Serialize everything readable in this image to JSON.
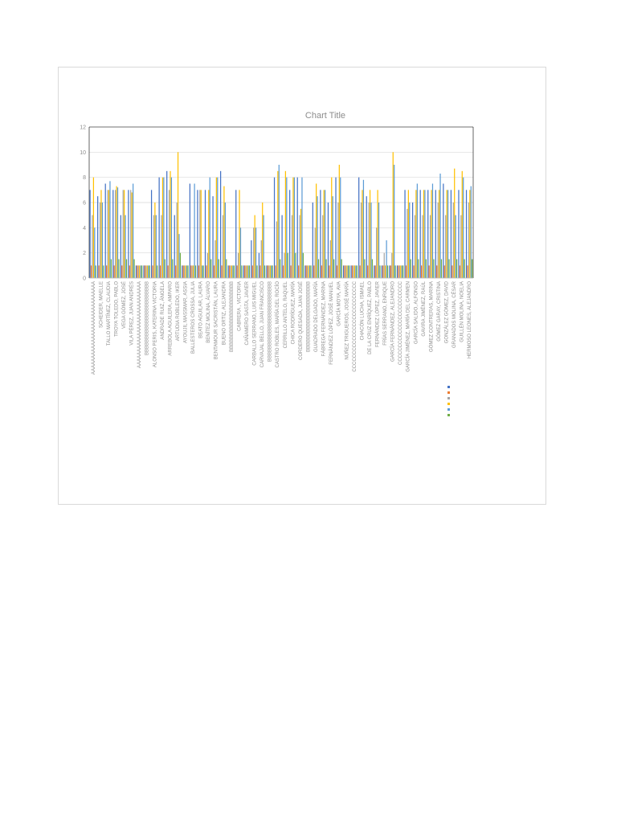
{
  "chart_data": {
    "type": "bar",
    "title": "Chart Title",
    "xlabel": "",
    "ylabel": "",
    "ylim": [
      0,
      12
    ],
    "yticks": [
      0,
      2,
      4,
      6,
      8,
      10,
      12
    ],
    "grid": true,
    "legend_position": "right",
    "colors": [
      "#4472c4",
      "#ed7d31",
      "#a5a5a5",
      "#ffc000",
      "#5b9bd5",
      "#70ad47"
    ],
    "categories": [
      "AAAAAAAAAAAAAAAAAAAAAAAAAAAAA",
      "SCHEIDER, MAELLE",
      "TALLO MARTÍNEZ, CLAUDIA",
      "TROYA TOLEDO, PABLO",
      "VEGA GÓMEZ, JOSÉ",
      "VILA PÉREZ, JUAN ANDRÉS",
      "AAAAAAAAAAAAAAAAAAAAAAAAAAA",
      "BBBBBBBBBBBBBBBBBBBBBBB",
      "ALONSO PERIS, KATERINA VICTORIA",
      "ANDRADE RUIZ, ÁNGELA",
      "ARREBOLA AGUILERA, AMPARO",
      "ARTUDIA ROBLEDO, IKER",
      "AYOUJIL MASSMAR, ASSIA",
      "BALLESTEROS CROSSA, JULIA",
      "BEATO AGUILAR, LAURA",
      "BENÍTEZ MOLINA, ÁLVARO",
      "BENTAMOUR SACRISTÁN, LAURA",
      "BUENO ORTIZ, ALEJANDRA",
      "BBBBBBBBBBBBBBBBBBBBBB",
      "CABRERA , VICTORIA",
      "CAÑAMERO SASTA, JAVIER",
      "CARBALLO SERRANO, LUIS MIGUEL",
      "CARVAJAL BELLO, JUAN FRANCISCO",
      "BBBBBBBBBBBBBBBBBBBBBBBBB",
      "CASTRO ROBLES, MARÍA DEL ROCÍO",
      "CERRILLO ANTELO, RAQUEL",
      "CHICA RODRÍGUEZ, MARÍA",
      "CORDERO QUESADA, JUAN JOSÉ",
      "BBBBBBBBBBBBBBBBBBBBBB",
      "GUADRADO DELGADO, MARÍA",
      "FÁBREGA FERNÁNDEZ, MARINA",
      "FERNÁNDEZ LÓPEZ, JOSÉ MANUEL",
      "GARCÍA MOYA, AVA",
      "NÚÑEZ TRIGUEROS, JOSÉ MARÍA",
      "CCCCCCCCCCCCCCCCCCCCCCCCCC",
      "CHACÓN LUCHA, ISMAEL",
      "DE LA CRUZ ENRÍQUEZ, PABLO",
      "FERNÁNDEZ LÓPEZ, JAVIER",
      "FRÍAS SERRANO, ENRIQUE",
      "GARCÍA FERNÁNDEZ, ALEJANDRO",
      "CCCCCCCCCCCCCCCCCCCCCCCC",
      "GARCÍA JIMÉNEZ, MARÍA DEL CARMEN",
      "GARCÍA SALIDO, ALFONSO",
      "GAVIRA JIMÉNEZ, RAÚL",
      "GÓMEZ CONTRERAS, MARINA",
      "GÓMEZ GARAY, CRISTINA",
      "GONZÁLEZ GÓMEZ, DAVID",
      "GRANADOS MOLINA, CÉSAR",
      "GUILLÉN MOLINA, NOELIA",
      "HERMOSO LEONES, ALEJANDRO"
    ],
    "series": [
      {
        "values": [
          7,
          6.5,
          7.5,
          7,
          5,
          7,
          1,
          1,
          7,
          8,
          8.5,
          5,
          1,
          7.5,
          7,
          7,
          6.5,
          8.5,
          1,
          7,
          1,
          3,
          2,
          1,
          8,
          5,
          7,
          8,
          1,
          6,
          7,
          6,
          8,
          1,
          1,
          8,
          6.5,
          1,
          1,
          1,
          1,
          7,
          6,
          7,
          7,
          7,
          7.5,
          7,
          7,
          7
        ]
      },
      {
        "values": [
          1,
          1,
          1,
          1,
          1,
          1,
          1,
          1,
          1,
          1,
          1,
          1,
          1,
          1,
          1,
          1,
          1,
          1,
          1,
          1,
          1,
          1,
          1,
          1,
          1,
          1,
          1,
          1,
          1,
          1,
          1,
          1,
          1,
          1,
          1,
          1,
          1,
          1,
          1,
          1,
          1,
          1,
          1,
          1,
          1,
          1,
          1,
          1,
          1,
          1
        ]
      },
      {
        "values": [
          5,
          6,
          7,
          7,
          7,
          7,
          1,
          1,
          5,
          5,
          7,
          6,
          1,
          1,
          7,
          2,
          3,
          5,
          1,
          2,
          1,
          4,
          3,
          1,
          4.5,
          2,
          5,
          5,
          1,
          4,
          5,
          3,
          6,
          1,
          1,
          6,
          6,
          4,
          2,
          2,
          1,
          5.5,
          5,
          5,
          5,
          6,
          5,
          6,
          5,
          6
        ]
      },
      {
        "values": [
          8,
          7,
          7,
          7.3,
          7,
          6.8,
          1,
          1,
          6,
          8,
          8.5,
          10,
          1,
          1,
          7,
          7,
          8,
          7.3,
          1,
          7,
          1,
          5,
          6,
          1,
          8.5,
          8.5,
          8,
          5.5,
          1,
          7.5,
          7,
          8,
          9,
          1,
          1,
          7,
          7,
          7,
          1,
          10,
          1,
          7,
          7,
          7,
          7,
          7,
          7,
          8.7,
          8.5,
          7
        ]
      },
      {
        "values": [
          4,
          6,
          7.7,
          7.2,
          5,
          7.5,
          1,
          1,
          5,
          8,
          8,
          3.5,
          1,
          7.5,
          1,
          8,
          8,
          6,
          1,
          4,
          1,
          4,
          5,
          1,
          9,
          8,
          8,
          8,
          1,
          6.5,
          7,
          6.5,
          8,
          1,
          1,
          7.8,
          6,
          6,
          3,
          9,
          1,
          6,
          7.5,
          7,
          7.5,
          8.3,
          7,
          5,
          8,
          7.3
        ]
      },
      {
        "values": [
          1,
          1,
          1.5,
          1.5,
          1.5,
          1.5,
          1,
          1,
          1,
          1.5,
          1.5,
          2,
          1,
          1,
          1,
          1.5,
          1.5,
          1.5,
          1,
          1,
          1,
          1,
          1,
          1,
          1.5,
          2,
          2,
          2,
          1,
          1.5,
          1.5,
          1.5,
          1.5,
          1,
          1,
          1.5,
          1.5,
          1,
          1,
          1,
          1,
          1.5,
          1.5,
          1.5,
          1.5,
          1.5,
          1.5,
          1.5,
          1.5,
          1.5
        ]
      }
    ]
  }
}
